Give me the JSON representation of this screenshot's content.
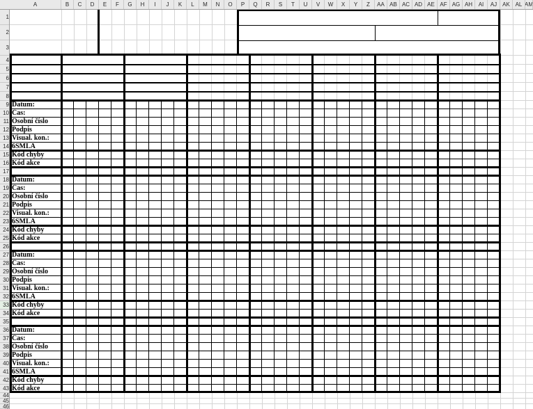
{
  "sheet": {
    "column_headers": [
      "A",
      "B",
      "C",
      "D",
      "E",
      "F",
      "G",
      "H",
      "I",
      "J",
      "K",
      "L",
      "M",
      "N",
      "O",
      "P",
      "Q",
      "R",
      "S",
      "T",
      "U",
      "V",
      "W",
      "X",
      "Y",
      "Z",
      "AA",
      "AB",
      "AC",
      "AD",
      "AE",
      "AF",
      "AG",
      "AH",
      "AI",
      "AJ",
      "AK",
      "AL",
      "AM"
    ],
    "row_headers": [
      "1",
      "2",
      "3",
      "4",
      "5",
      "6",
      "7",
      "8",
      "9",
      "10",
      "11",
      "12",
      "13",
      "14",
      "15",
      "16",
      "17",
      "18",
      "19",
      "20",
      "21",
      "22",
      "23",
      "24",
      "25",
      "26",
      "27",
      "28",
      "29",
      "30",
      "31",
      "32",
      "33",
      "34",
      "35",
      "36",
      "37",
      "38",
      "39",
      "40",
      "41",
      "42",
      "43",
      "44",
      "45",
      "46"
    ],
    "active_row": "33"
  },
  "form": {
    "row_labels": [
      "Datum:",
      "Čas:",
      "Osobní číslo",
      "Podpis",
      "Visual. kon.:",
      "6SMLA",
      "Kód chyby",
      "Kód akce"
    ],
    "block_start_rows": [
      9,
      18,
      27,
      36
    ]
  },
  "colors": {
    "grid_line": "#d4d4d4",
    "header_bg": "#e9e9e9",
    "header_separator": "#c9c9c9",
    "header_edge": "#9e9e9e",
    "header_text": "#2a2a2a",
    "active_row_accent": "#3fa33f",
    "active_row_bg": "#e6f0e6",
    "table_line": "#000000",
    "cell_bg": "#ffffff"
  }
}
